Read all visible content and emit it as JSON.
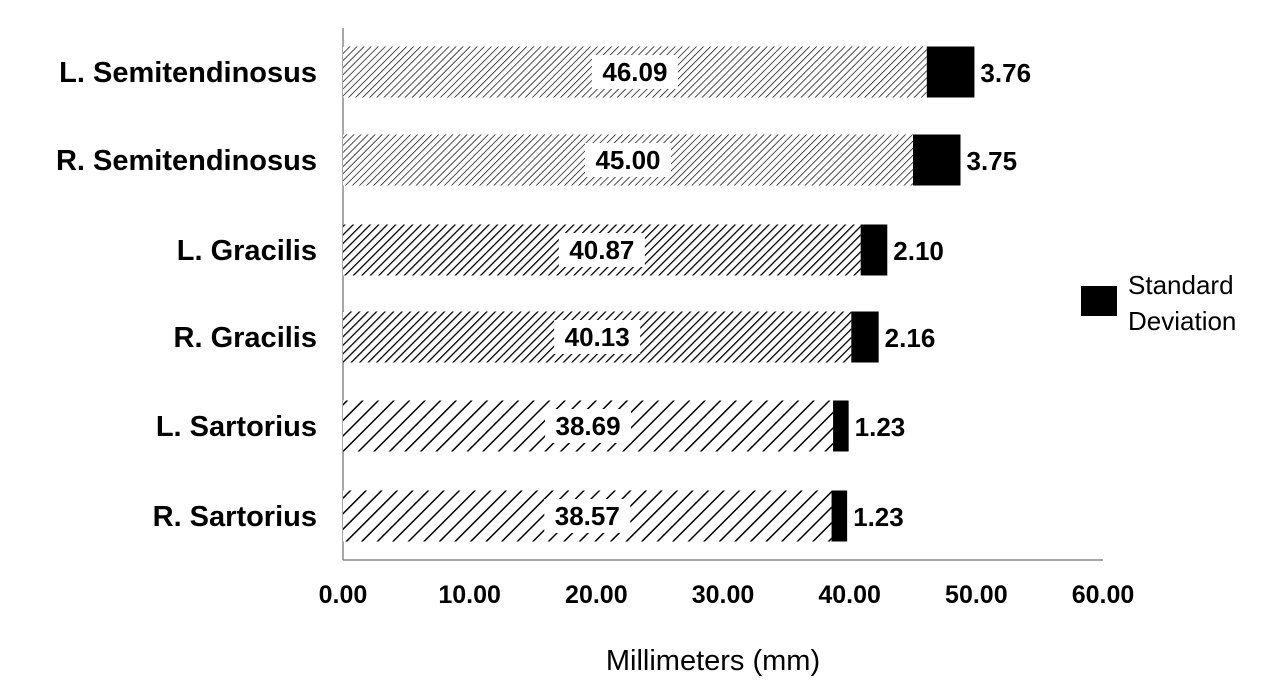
{
  "chart_data": {
    "type": "bar",
    "orientation": "horizontal",
    "stacked": true,
    "categories": [
      "L. Semitendinosus",
      "R. Semitendinosus",
      "L. Gracilis",
      "R. Gracilis",
      "L. Sartorius",
      "R. Sartorius"
    ],
    "series": [
      {
        "values": [
          46.09,
          45.0,
          40.87,
          40.13,
          38.69,
          38.57
        ],
        "value_labels": [
          "46.09",
          "45.00",
          "40.87",
          "40.13",
          "38.69",
          "38.57"
        ],
        "color": "#000000"
      },
      {
        "name": "Standard Deviation",
        "values": [
          3.76,
          3.75,
          2.1,
          2.16,
          1.23,
          1.23
        ],
        "value_labels": [
          "3.76",
          "3.75",
          "2.10",
          "2.16",
          "1.23",
          "1.23"
        ],
        "color": "#000000"
      }
    ],
    "xlim": [
      0,
      60
    ],
    "xticks": [
      0,
      10,
      20,
      30,
      40,
      50,
      60
    ],
    "xtick_labels": [
      "0.00",
      "10.00",
      "20.00",
      "30.00",
      "40.00",
      "50.00",
      "60.00"
    ],
    "xlabel": "Millimeters (mm)",
    "ylabel": "",
    "title": "",
    "legend": {
      "position": "right",
      "entries": [
        "Standard",
        "Deviation"
      ]
    },
    "grid": false
  }
}
